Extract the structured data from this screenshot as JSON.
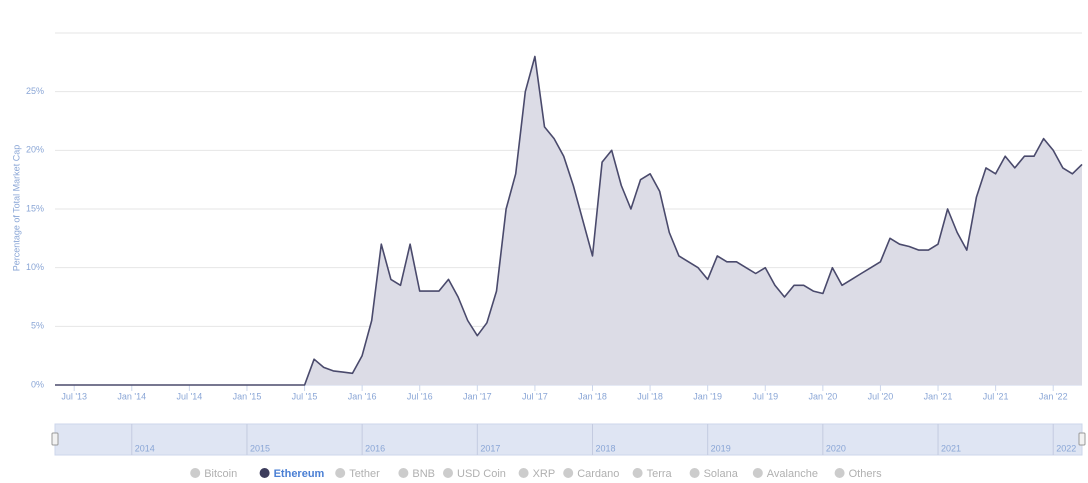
{
  "chart_data": {
    "type": "area",
    "y_axis_label": "Percentage of Total Market Cap",
    "x": [
      "2013-05",
      "2013-06",
      "2013-07",
      "2013-08",
      "2013-09",
      "2013-10",
      "2013-11",
      "2013-12",
      "2014-01",
      "2014-02",
      "2014-03",
      "2014-04",
      "2014-05",
      "2014-06",
      "2014-07",
      "2014-08",
      "2014-09",
      "2014-10",
      "2014-11",
      "2014-12",
      "2015-01",
      "2015-02",
      "2015-03",
      "2015-04",
      "2015-05",
      "2015-06",
      "2015-07",
      "2015-08",
      "2015-09",
      "2015-10",
      "2015-11",
      "2015-12",
      "2016-01",
      "2016-02",
      "2016-03",
      "2016-04",
      "2016-05",
      "2016-06",
      "2016-07",
      "2016-08",
      "2016-09",
      "2016-10",
      "2016-11",
      "2016-12",
      "2017-01",
      "2017-02",
      "2017-03",
      "2017-04",
      "2017-05",
      "2017-06",
      "2017-07",
      "2017-08",
      "2017-09",
      "2017-10",
      "2017-11",
      "2017-12",
      "2018-01",
      "2018-02",
      "2018-03",
      "2018-04",
      "2018-05",
      "2018-06",
      "2018-07",
      "2018-08",
      "2018-09",
      "2018-10",
      "2018-11",
      "2018-12",
      "2019-01",
      "2019-02",
      "2019-03",
      "2019-04",
      "2019-05",
      "2019-06",
      "2019-07",
      "2019-08",
      "2019-09",
      "2019-10",
      "2019-11",
      "2019-12",
      "2020-01",
      "2020-02",
      "2020-03",
      "2020-04",
      "2020-05",
      "2020-06",
      "2020-07",
      "2020-08",
      "2020-09",
      "2020-10",
      "2020-11",
      "2020-12",
      "2021-01",
      "2021-02",
      "2021-03",
      "2021-04",
      "2021-05",
      "2021-06",
      "2021-07",
      "2021-08",
      "2021-09",
      "2021-10",
      "2021-11",
      "2021-12",
      "2022-01",
      "2022-02",
      "2022-03",
      "2022-04"
    ],
    "series": [
      {
        "name": "Ethereum",
        "color": "#4a4a6c",
        "fill": "#dcdce6",
        "values": [
          0,
          0,
          0,
          0,
          0,
          0,
          0,
          0,
          0,
          0,
          0,
          0,
          0,
          0,
          0,
          0,
          0,
          0,
          0,
          0,
          0,
          0,
          0,
          0,
          0,
          0,
          0,
          2.2,
          1.5,
          1.2,
          1.1,
          1.0,
          2.5,
          5.5,
          12,
          9,
          8.5,
          12,
          8,
          8,
          8,
          9,
          7.5,
          5.5,
          4.2,
          5.3,
          8,
          15,
          18,
          25,
          28,
          22,
          21,
          19.5,
          17,
          14,
          11,
          19,
          20,
          17,
          15,
          17.5,
          18,
          16.5,
          13,
          11,
          10.5,
          10,
          9,
          11,
          10.5,
          10.5,
          10,
          9.5,
          10,
          8.5,
          7.5,
          8.5,
          8.5,
          8,
          7.8,
          10,
          8.5,
          9,
          9.5,
          10,
          10.5,
          12.5,
          12,
          11.8,
          11.5,
          11.5,
          12,
          15,
          13,
          11.5,
          16,
          18.5,
          18,
          19.5,
          18.5,
          19.5,
          19.5,
          21,
          20,
          18.5,
          18,
          18.8
        ]
      }
    ],
    "xlim": [
      "2013-05",
      "2022-04"
    ],
    "xticks": [
      {
        "value": "2013-07",
        "label": "Jul '13"
      },
      {
        "value": "2014-01",
        "label": "Jan '14"
      },
      {
        "value": "2014-07",
        "label": "Jul '14"
      },
      {
        "value": "2015-01",
        "label": "Jan '15"
      },
      {
        "value": "2015-07",
        "label": "Jul '15"
      },
      {
        "value": "2016-01",
        "label": "Jan '16"
      },
      {
        "value": "2016-07",
        "label": "Jul '16"
      },
      {
        "value": "2017-01",
        "label": "Jan '17"
      },
      {
        "value": "2017-07",
        "label": "Jul '17"
      },
      {
        "value": "2018-01",
        "label": "Jan '18"
      },
      {
        "value": "2018-07",
        "label": "Jul '18"
      },
      {
        "value": "2019-01",
        "label": "Jan '19"
      },
      {
        "value": "2019-07",
        "label": "Jul '19"
      },
      {
        "value": "2020-01",
        "label": "Jan '20"
      },
      {
        "value": "2020-07",
        "label": "Jul '20"
      },
      {
        "value": "2021-01",
        "label": "Jan '21"
      },
      {
        "value": "2021-07",
        "label": "Jul '21"
      },
      {
        "value": "2022-01",
        "label": "Jan '22"
      }
    ],
    "ylim": [
      0,
      30
    ],
    "yticks": [
      {
        "value": 0,
        "label": "0%"
      },
      {
        "value": 5,
        "label": "5%"
      },
      {
        "value": 10,
        "label": "10%"
      },
      {
        "value": 15,
        "label": "15%"
      },
      {
        "value": 20,
        "label": "20%"
      },
      {
        "value": 25,
        "label": "25%"
      }
    ],
    "grid": true,
    "navigator_ticks": [
      {
        "value": "2014-01",
        "label": "2014"
      },
      {
        "value": "2015-01",
        "label": "2015"
      },
      {
        "value": "2016-01",
        "label": "2016"
      },
      {
        "value": "2017-01",
        "label": "2017"
      },
      {
        "value": "2018-01",
        "label": "2018"
      },
      {
        "value": "2019-01",
        "label": "2019"
      },
      {
        "value": "2020-01",
        "label": "2020"
      },
      {
        "value": "2021-01",
        "label": "2021"
      },
      {
        "value": "2022-01",
        "label": "2022"
      }
    ],
    "legend": {
      "items": [
        "Bitcoin",
        "Ethereum",
        "Tether",
        "BNB",
        "USD Coin",
        "XRP",
        "Cardano",
        "Terra",
        "Solana",
        "Avalanche",
        "Others"
      ],
      "active": 1,
      "active_color": "#3c3c5c",
      "inactive_color": "#cccccc"
    }
  }
}
